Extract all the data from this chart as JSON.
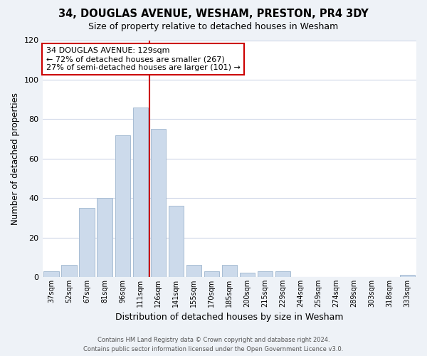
{
  "title": "34, DOUGLAS AVENUE, WESHAM, PRESTON, PR4 3DY",
  "subtitle": "Size of property relative to detached houses in Wesham",
  "xlabel": "Distribution of detached houses by size in Wesham",
  "ylabel": "Number of detached properties",
  "categories": [
    "37sqm",
    "52sqm",
    "67sqm",
    "81sqm",
    "96sqm",
    "111sqm",
    "126sqm",
    "141sqm",
    "155sqm",
    "170sqm",
    "185sqm",
    "200sqm",
    "215sqm",
    "229sqm",
    "244sqm",
    "259sqm",
    "274sqm",
    "289sqm",
    "303sqm",
    "318sqm",
    "333sqm"
  ],
  "values": [
    3,
    6,
    35,
    40,
    72,
    86,
    75,
    36,
    6,
    3,
    6,
    2,
    3,
    3,
    0,
    0,
    0,
    0,
    0,
    0,
    1
  ],
  "bar_color": "#ccdaeb",
  "bar_edge_color": "#a8bdd4",
  "vline_color": "#cc0000",
  "annotation_box_color": "#cc0000",
  "annotation_lines": [
    "34 DOUGLAS AVENUE: 129sqm",
    "← 72% of detached houses are smaller (267)",
    "27% of semi-detached houses are larger (101) →"
  ],
  "ylim": [
    0,
    120
  ],
  "yticks": [
    0,
    20,
    40,
    60,
    80,
    100,
    120
  ],
  "footer_line1": "Contains HM Land Registry data © Crown copyright and database right 2024.",
  "footer_line2": "Contains public sector information licensed under the Open Government Licence v3.0.",
  "background_color": "#eef2f7",
  "plot_background_color": "#ffffff",
  "grid_color": "#d0d8e8"
}
